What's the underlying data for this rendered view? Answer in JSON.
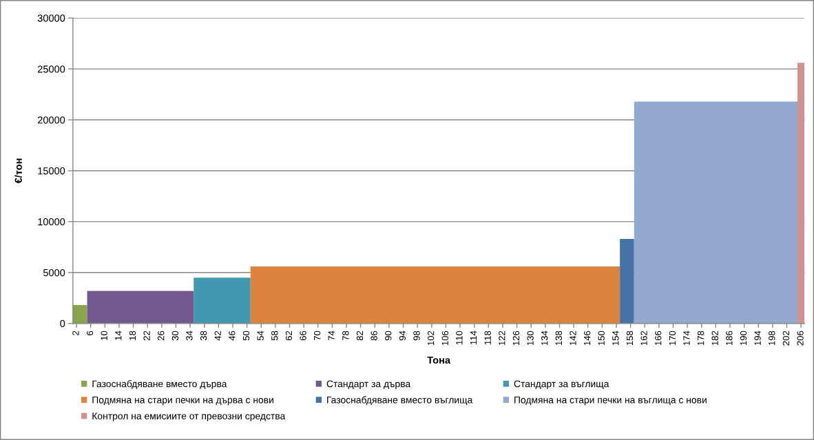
{
  "chart_data": {
    "type": "histogram",
    "xlabel": "Тона",
    "ylabel": "€/тон",
    "bins": [
      1,
      5,
      35,
      51,
      155,
      159,
      205,
      207
    ],
    "series": [
      {
        "name": "Газоснабдяване вместо дърва",
        "color": "#89a54e",
        "values": [
          1800,
          null,
          null,
          null,
          null,
          null,
          null
        ]
      },
      {
        "name": "Стандарт за дърва",
        "color": "#71588f",
        "values": [
          null,
          3200,
          null,
          null,
          null,
          null,
          null
        ]
      },
      {
        "name": "Стандарт за въглища",
        "color": "#4198af",
        "values": [
          null,
          null,
          4500,
          null,
          null,
          null,
          null
        ]
      },
      {
        "name": "Подмяна на стари печки на дърва с нови",
        "color": "#db843d",
        "values": [
          null,
          null,
          null,
          5600,
          null,
          null,
          null
        ]
      },
      {
        "name": "Газоснабдяване вместо въглища",
        "color": "#4572a7",
        "values": [
          null,
          null,
          null,
          null,
          8300,
          null,
          null
        ]
      },
      {
        "name": "Подмяна на стари печки на въглища с нови",
        "color": "#93a9cf",
        "values": [
          null,
          null,
          null,
          null,
          null,
          21800,
          null
        ]
      },
      {
        "name": "Контрол на емисиите от превозни средства",
        "color": "#d19392",
        "values": [
          null,
          null,
          null,
          null,
          null,
          null,
          25600
        ]
      }
    ],
    "xlim": [
      1,
      207
    ],
    "xticks": [
      2,
      6,
      10,
      14,
      18,
      22,
      26,
      30,
      34,
      38,
      42,
      46,
      50,
      54,
      58,
      62,
      66,
      70,
      74,
      78,
      82,
      86,
      90,
      94,
      98,
      102,
      106,
      110,
      114,
      118,
      122,
      126,
      130,
      134,
      138,
      142,
      146,
      150,
      154,
      158,
      162,
      166,
      170,
      174,
      178,
      182,
      186,
      190,
      194,
      198,
      202,
      206
    ],
    "ylim": [
      0,
      30000
    ],
    "yticks": [
      0,
      5000,
      10000,
      15000,
      20000,
      25000,
      30000
    ],
    "grid": "y",
    "legend": "bottom"
  }
}
